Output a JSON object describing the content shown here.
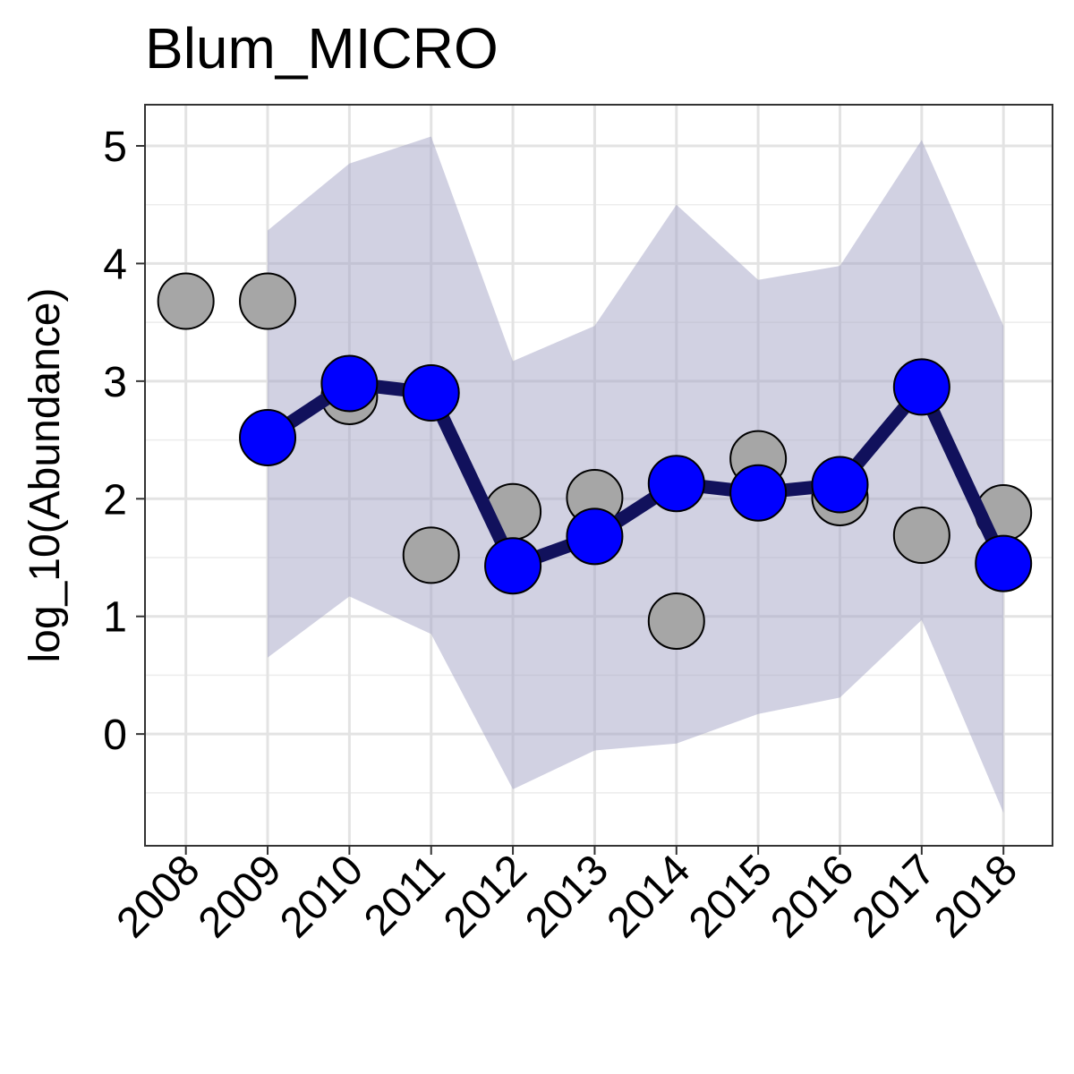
{
  "chart_data": {
    "type": "line",
    "title": "Blum_MICRO",
    "xlabel": "",
    "ylabel": "log_10(Abundance)",
    "x": [
      2008,
      2009,
      2010,
      2011,
      2012,
      2013,
      2014,
      2015,
      2016,
      2017,
      2018
    ],
    "x_tick_labels": [
      "2008",
      "2009",
      "2010",
      "2011",
      "2012",
      "2013",
      "2014",
      "2015",
      "2016",
      "2017",
      "2018"
    ],
    "y_ticks": [
      0,
      1,
      2,
      3,
      4,
      5
    ],
    "y_tick_labels": [
      "0",
      "1",
      "2",
      "3",
      "4",
      "5"
    ],
    "xlim": [
      2007.5,
      2018.6
    ],
    "ylim": [
      -0.95,
      5.35
    ],
    "grid": true,
    "series": [
      {
        "kind": "observed-points",
        "color": "#a6a6a6",
        "x": [
          2008,
          2009,
          2010,
          2011,
          2012,
          2013,
          2014,
          2015,
          2016,
          2017,
          2018
        ],
        "values": [
          3.68,
          3.68,
          2.87,
          1.52,
          1.89,
          2.01,
          0.96,
          2.34,
          2.01,
          1.69,
          1.88
        ]
      },
      {
        "kind": "fitted-line",
        "line_color": "#11115c",
        "point_color": "#0000ff",
        "x": [
          2009,
          2010,
          2011,
          2012,
          2013,
          2014,
          2015,
          2016,
          2017,
          2018
        ],
        "values": [
          2.52,
          2.98,
          2.9,
          1.43,
          1.68,
          2.13,
          2.05,
          2.12,
          2.95,
          1.45
        ]
      },
      {
        "kind": "interval-band",
        "color": "#a3a3c6",
        "x": [
          2009,
          2010,
          2011,
          2012,
          2013,
          2014,
          2015,
          2016,
          2017,
          2018
        ],
        "upper": [
          4.28,
          4.85,
          5.08,
          3.17,
          3.47,
          4.5,
          3.86,
          3.98,
          5.05,
          3.47
        ],
        "lower": [
          0.65,
          1.17,
          0.85,
          -0.47,
          -0.14,
          -0.08,
          0.17,
          0.31,
          0.97,
          -0.67
        ]
      }
    ]
  }
}
